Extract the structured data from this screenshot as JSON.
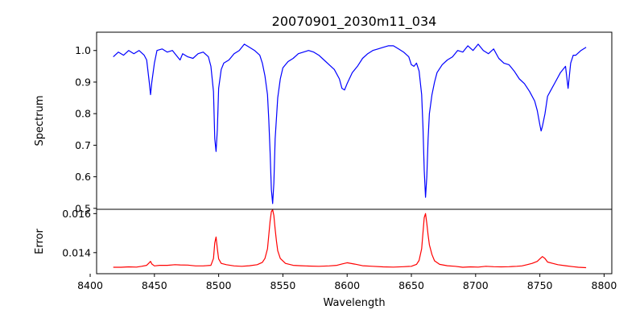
{
  "chart_data": {
    "type": "line",
    "title": "20070901_2030m11_034",
    "xlabel": "Wavelength",
    "xlim": [
      8405,
      8806
    ],
    "xticks": [
      8400,
      8450,
      8500,
      8550,
      8600,
      8650,
      8700,
      8750,
      8800
    ],
    "grid": false,
    "panels": [
      {
        "name": "spectrum",
        "ylabel": "Spectrum",
        "ylim": [
          0.497,
          1.058
        ],
        "yticks": [
          "0.5",
          "0.6",
          "0.7",
          "0.8",
          "0.9",
          "1.0"
        ],
        "series": [
          {
            "color": "#0000ff",
            "x": [
              8418,
              8422,
              8426,
              8430,
              8434,
              8438,
              8442,
              8444,
              8446,
              8447,
              8448,
              8450,
              8452,
              8456,
              8460,
              8464,
              8468,
              8470,
              8472,
              8476,
              8480,
              8484,
              8488,
              8492,
              8494,
              8496,
              8497,
              8498,
              8499,
              8500,
              8502,
              8504,
              8508,
              8512,
              8516,
              8520,
              8524,
              8528,
              8532,
              8534,
              8536,
              8538,
              8539,
              8540,
              8541,
              8542,
              8543,
              8544,
              8546,
              8548,
              8550,
              8554,
              8558,
              8562,
              8566,
              8570,
              8574,
              8578,
              8582,
              8586,
              8590,
              8594,
              8596,
              8598,
              8600,
              8604,
              8608,
              8612,
              8616,
              8620,
              8624,
              8628,
              8632,
              8636,
              8640,
              8644,
              8648,
              8650,
              8652,
              8654,
              8656,
              8658,
              8659,
              8660,
              8661,
              8662,
              8663,
              8664,
              8666,
              8668,
              8670,
              8674,
              8678,
              8682,
              8686,
              8690,
              8694,
              8698,
              8702,
              8706,
              8710,
              8714,
              8718,
              8722,
              8726,
              8730,
              8734,
              8738,
              8742,
              8746,
              8748,
              8750,
              8751,
              8752,
              8754,
              8756,
              8758,
              8762,
              8766,
              8770,
              8772,
              8774,
              8776,
              8778,
              8782,
              8786
            ],
            "y": [
              0.98,
              0.995,
              0.985,
              1.0,
              0.99,
              1.0,
              0.985,
              0.97,
              0.9,
              0.86,
              0.9,
              0.96,
              1.0,
              1.005,
              0.995,
              1.0,
              0.98,
              0.97,
              0.99,
              0.98,
              0.975,
              0.99,
              0.995,
              0.98,
              0.95,
              0.87,
              0.72,
              0.68,
              0.75,
              0.88,
              0.94,
              0.96,
              0.97,
              0.99,
              1.0,
              1.02,
              1.01,
              1.0,
              0.985,
              0.96,
              0.92,
              0.86,
              0.78,
              0.68,
              0.56,
              0.515,
              0.58,
              0.72,
              0.85,
              0.91,
              0.945,
              0.965,
              0.975,
              0.99,
              0.995,
              1.0,
              0.995,
              0.985,
              0.97,
              0.955,
              0.94,
              0.91,
              0.88,
              0.875,
              0.895,
              0.93,
              0.95,
              0.975,
              0.99,
              1.0,
              1.005,
              1.01,
              1.015,
              1.015,
              1.005,
              0.995,
              0.98,
              0.955,
              0.95,
              0.96,
              0.935,
              0.86,
              0.76,
              0.62,
              0.535,
              0.6,
              0.72,
              0.8,
              0.86,
              0.9,
              0.93,
              0.955,
              0.97,
              0.98,
              1.0,
              0.995,
              1.015,
              1.0,
              1.02,
              1.0,
              0.99,
              1.005,
              0.975,
              0.96,
              0.955,
              0.935,
              0.91,
              0.895,
              0.87,
              0.84,
              0.81,
              0.765,
              0.745,
              0.76,
              0.8,
              0.855,
              0.87,
              0.9,
              0.93,
              0.95,
              0.88,
              0.96,
              0.985,
              0.985,
              1.0,
              1.01
            ]
          }
        ]
      },
      {
        "name": "error",
        "ylabel": "Error",
        "ylim": [
          0.01292,
          0.01622
        ],
        "yticks": [
          "0.014",
          "0.016"
        ],
        "series": [
          {
            "color": "#ff0000",
            "x": [
              8418,
              8424,
              8430,
              8436,
              8440,
              8444,
              8446,
              8447,
              8448,
              8450,
              8454,
              8460,
              8466,
              8470,
              8476,
              8482,
              8488,
              8494,
              8496,
              8497,
              8498,
              8499,
              8500,
              8502,
              8506,
              8512,
              8518,
              8524,
              8530,
              8534,
              8536,
              8538,
              8539,
              8540,
              8541,
              8542,
              8543,
              8544,
              8545,
              8546,
              8548,
              8552,
              8558,
              8564,
              8570,
              8578,
              8586,
              8592,
              8596,
              8600,
              8606,
              8612,
              8620,
              8628,
              8636,
              8644,
              8650,
              8652,
              8654,
              8656,
              8658,
              8659,
              8660,
              8661,
              8662,
              8663,
              8664,
              8666,
              8668,
              8672,
              8678,
              8684,
              8690,
              8696,
              8702,
              8708,
              8714,
              8720,
              8726,
              8732,
              8736,
              8740,
              8744,
              8748,
              8750,
              8752,
              8754,
              8756,
              8760,
              8764,
              8770,
              8776,
              8780,
              8786
            ],
            "y": [
              0.01325,
              0.01325,
              0.01327,
              0.01326,
              0.0133,
              0.01335,
              0.01348,
              0.01355,
              0.01342,
              0.01332,
              0.01335,
              0.01335,
              0.01338,
              0.01337,
              0.01336,
              0.01332,
              0.01332,
              0.01335,
              0.0137,
              0.0145,
              0.0148,
              0.0142,
              0.01368,
              0.01345,
              0.01338,
              0.01332,
              0.0133,
              0.01333,
              0.01338,
              0.0135,
              0.0137,
              0.0142,
              0.0149,
              0.0156,
              0.0161,
              0.0162,
              0.0159,
              0.0152,
              0.0146,
              0.0141,
              0.0137,
              0.01345,
              0.01335,
              0.01333,
              0.01331,
              0.0133,
              0.01332,
              0.01335,
              0.01342,
              0.01348,
              0.01341,
              0.01333,
              0.0133,
              0.01327,
              0.01326,
              0.01328,
              0.0133,
              0.01335,
              0.0134,
              0.0136,
              0.0142,
              0.015,
              0.0158,
              0.016,
              0.0155,
              0.0149,
              0.0144,
              0.0139,
              0.01358,
              0.0134,
              0.01333,
              0.0133,
              0.01325,
              0.01327,
              0.01326,
              0.0133,
              0.01328,
              0.01327,
              0.01328,
              0.0133,
              0.01332,
              0.01338,
              0.01345,
              0.01355,
              0.01368,
              0.0138,
              0.0137,
              0.01352,
              0.01345,
              0.01338,
              0.01333,
              0.01328,
              0.01325,
              0.01323
            ]
          }
        ]
      }
    ]
  }
}
